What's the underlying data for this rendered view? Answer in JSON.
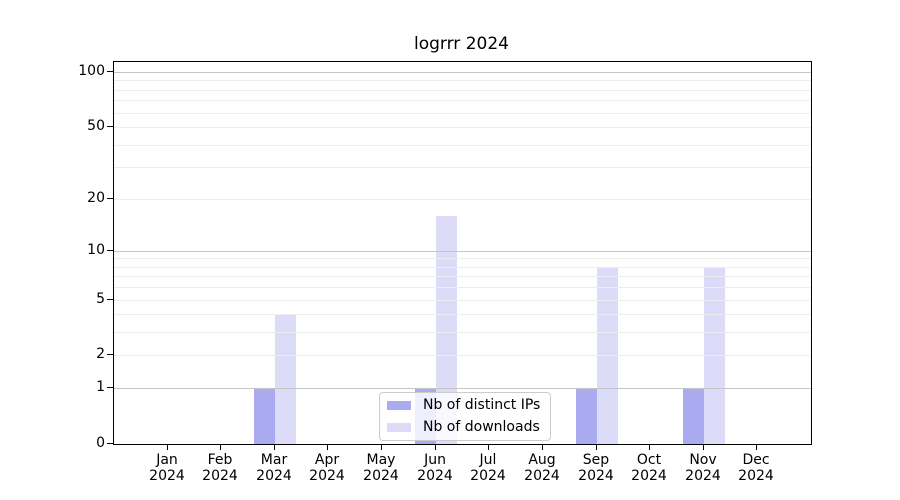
{
  "chart_data": {
    "type": "bar",
    "title": "logrrr 2024",
    "categories": [
      "Jan",
      "Feb",
      "Mar",
      "Apr",
      "May",
      "Jun",
      "Jul",
      "Aug",
      "Sep",
      "Oct",
      "Nov",
      "Dec"
    ],
    "year_label": "2024",
    "series": [
      {
        "name": "Nb of distinct IPs",
        "color": "#aaaaf0",
        "values": [
          0,
          0,
          1,
          0,
          0,
          1,
          0,
          0,
          1,
          0,
          1,
          0
        ]
      },
      {
        "name": "Nb of downloads",
        "color": "#dcdcf8",
        "values": [
          0,
          0,
          4,
          0,
          0,
          16,
          0,
          0,
          8,
          0,
          8,
          0
        ]
      }
    ],
    "xlabel": "",
    "ylabel": "",
    "yscale": "log1p",
    "ylim": [
      0,
      113
    ],
    "yticks": [
      0,
      1,
      2,
      5,
      10,
      20,
      50,
      100
    ],
    "grid_minor_values": [
      2,
      3,
      4,
      5,
      6,
      7,
      8,
      9,
      20,
      30,
      40,
      50,
      60,
      70,
      80,
      90
    ],
    "grid_major_values": [
      1,
      10,
      100
    ],
    "grid_on": true,
    "legend_position": "lower center inside plot",
    "colors": {
      "grid_minor": "#ededed",
      "grid_major": "#c6c6c6",
      "axis": "#000000",
      "background": "#ffffff"
    }
  }
}
